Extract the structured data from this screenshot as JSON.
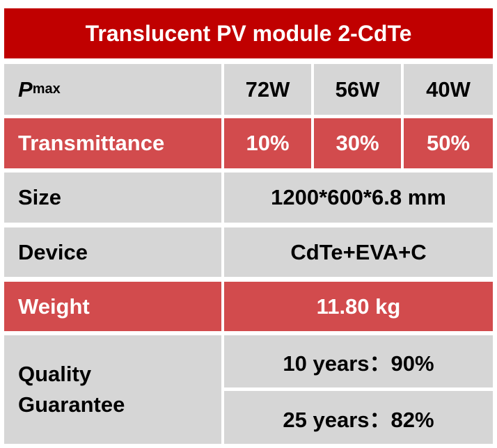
{
  "header": {
    "title": "Translucent PV module 2-CdTe"
  },
  "table": {
    "rows": [
      {
        "label": {
          "symbol": "P",
          "subscript": "max"
        },
        "cells": [
          "72W",
          "56W",
          "40W"
        ]
      },
      {
        "label": "Transmittance",
        "cells": [
          "10%",
          "30%",
          "50%"
        ]
      },
      {
        "label": "Size",
        "cells": [
          "1200*600*6.8 mm"
        ]
      },
      {
        "label": "Device",
        "cells": [
          "CdTe+EVA+C"
        ]
      },
      {
        "label": "Weight",
        "cells": [
          "11.80 kg"
        ]
      },
      {
        "label": [
          "Quality",
          "Guarantee"
        ],
        "cells": [
          "10 years：90%",
          "25 years：82%"
        ]
      }
    ]
  }
}
